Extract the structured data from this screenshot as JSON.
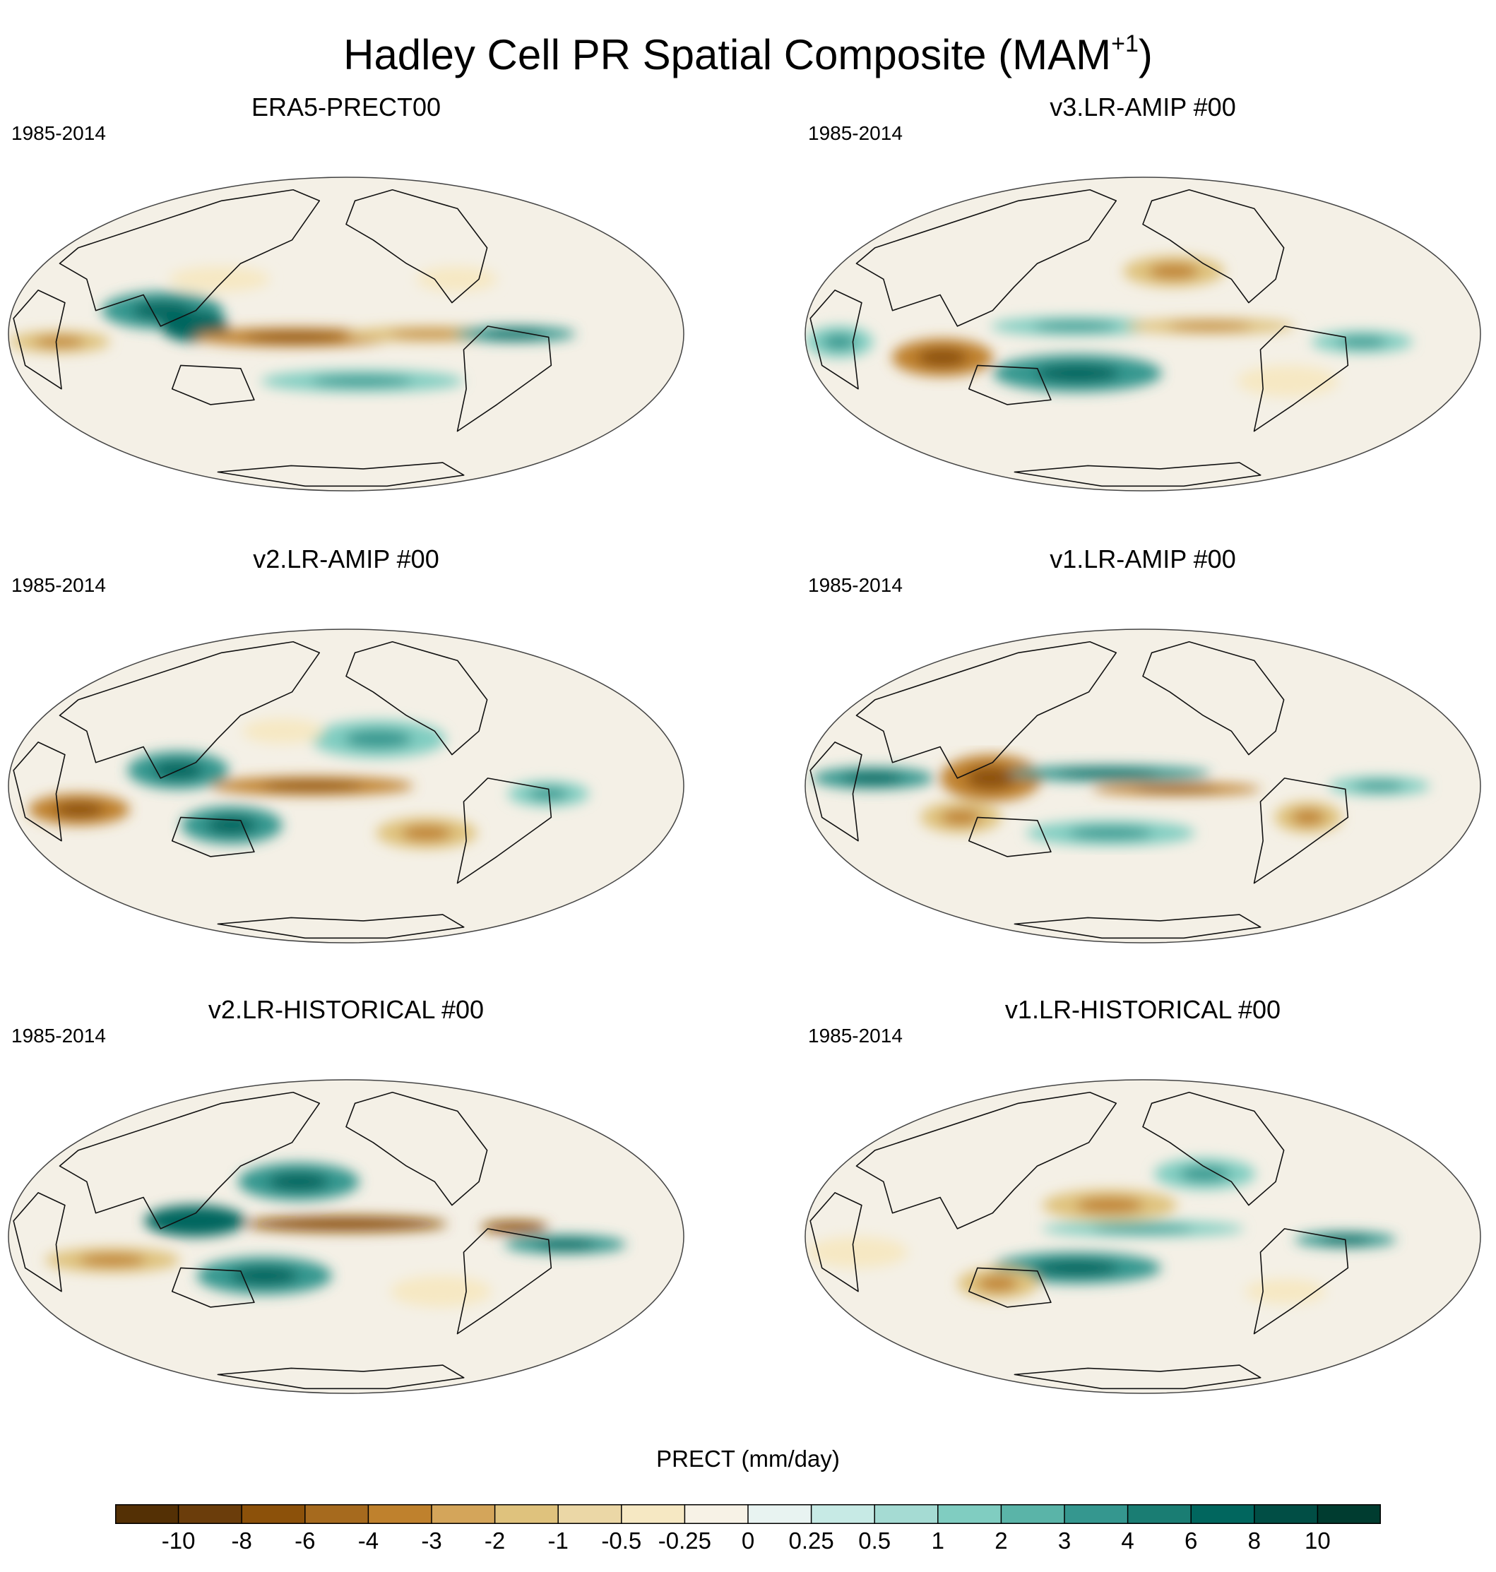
{
  "figure": {
    "title": "Hadley Cell PR Spatial Composite (MAM",
    "title_superscript": "+1",
    "title_suffix": ")"
  },
  "panels": [
    {
      "title": "ERA5-PRECT00",
      "period": "1985-2014",
      "pattern": "era5"
    },
    {
      "title": "v3.LR-AMIP  #00",
      "period": "1985-2014",
      "pattern": "v3amip"
    },
    {
      "title": "v2.LR-AMIP  #00",
      "period": "1985-2014",
      "pattern": "v2amip"
    },
    {
      "title": "v1.LR-AMIP  #00",
      "period": "1985-2014",
      "pattern": "v1amip"
    },
    {
      "title": "v2.LR-HISTORICAL  #00",
      "period": "1985-2014",
      "pattern": "v2hist"
    },
    {
      "title": "v1.LR-HISTORICAL  #00",
      "period": "1985-2014",
      "pattern": "v1hist"
    }
  ],
  "colorbar": {
    "title": "PRECT (mm/day)",
    "tick_labels": [
      "-10",
      "-8",
      "-6",
      "-4",
      "-3",
      "-2",
      "-1",
      "-0.5",
      "-0.25",
      "0",
      "0.25",
      "0.5",
      "1",
      "2",
      "3",
      "4",
      "6",
      "8",
      "10"
    ],
    "colors": [
      "#543005",
      "#6b3d0b",
      "#8c510a",
      "#a66a1e",
      "#bf812d",
      "#d4a55a",
      "#dfc27d",
      "#ebd7a6",
      "#f6e8c3",
      "#f7f2e6",
      "#e8f3f1",
      "#c7eae5",
      "#a5dbd3",
      "#80cdc1",
      "#5ab4a8",
      "#35978f",
      "#1a7d73",
      "#01665e",
      "#014e45",
      "#003c30"
    ]
  },
  "chart_data": {
    "type": "heatmap",
    "title": "Hadley Cell PR Spatial Composite (MAM+1)",
    "variable": "PRECT (mm/day)",
    "projection": "Robinson (Pacific-centered)",
    "levels": [
      -10,
      -8,
      -6,
      -4,
      -3,
      -2,
      -1,
      -0.5,
      -0.25,
      0,
      0.25,
      0.5,
      1,
      2,
      3,
      4,
      6,
      8,
      10
    ],
    "panels": [
      "ERA5-PRECT00",
      "v3.LR-AMIP  #00",
      "v2.LR-AMIP  #00",
      "v1.LR-AMIP  #00",
      "v2.LR-HISTORICAL  #00",
      "v1.LR-HISTORICAL  #00"
    ],
    "period": "1985-2014"
  }
}
